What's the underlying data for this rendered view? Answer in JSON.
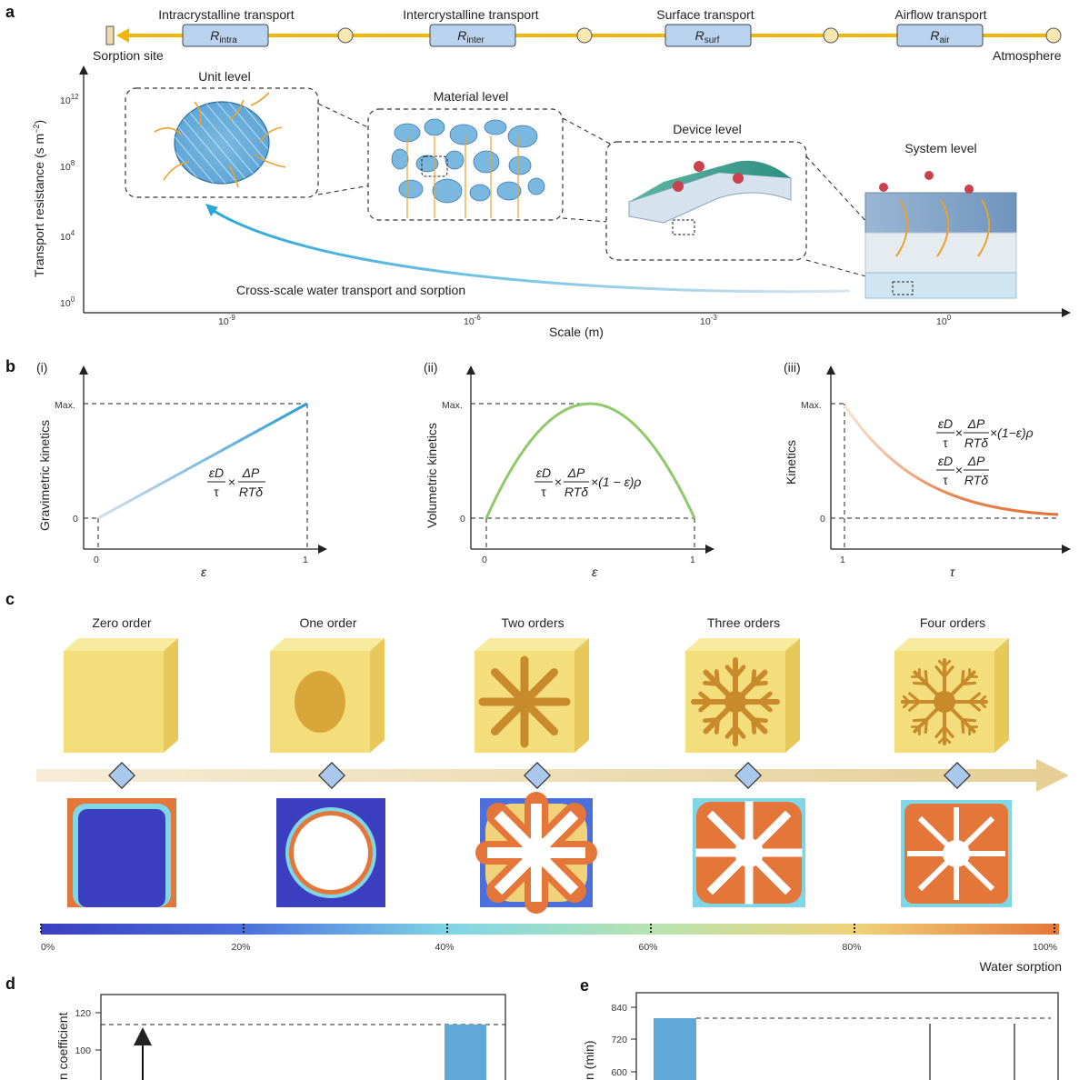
{
  "panels": {
    "a": "a",
    "b": "b",
    "c": "c",
    "d": "d",
    "e": "e"
  },
  "panel_a": {
    "chain_stages": [
      {
        "label": "Intracrystalline transport",
        "resistance": "R",
        "sub": "intra"
      },
      {
        "label": "Intercrystalline transport",
        "resistance": "R",
        "sub": "inter"
      },
      {
        "label": "Surface transport",
        "resistance": "R",
        "sub": "surf"
      },
      {
        "label": "Airflow transport",
        "resistance": "R",
        "sub": "air"
      }
    ],
    "chain_left_label": "Sorption site",
    "chain_right_label": "Atmosphere",
    "y_axis_label": "Transport resistance (s m",
    "y_axis_sup": "−2",
    "y_axis_close": ")",
    "y_ticks": [
      {
        "base": "10",
        "exp": "12"
      },
      {
        "base": "10",
        "exp": "8"
      },
      {
        "base": "10",
        "exp": "4"
      },
      {
        "base": "10",
        "exp": "0"
      }
    ],
    "x_axis_label": "Scale (m)",
    "x_ticks": [
      {
        "base": "10",
        "exp": "-9"
      },
      {
        "base": "10",
        "exp": "-6"
      },
      {
        "base": "10",
        "exp": "-3"
      },
      {
        "base": "10",
        "exp": "0"
      }
    ],
    "levels": [
      "Unit level",
      "Material level",
      "Device level",
      "System level"
    ],
    "curve_label": "Cross-scale water transport and sorption",
    "colors": {
      "chain": "#f2b600",
      "box": "#b9d3ef",
      "node": "#f7e7b0",
      "curve": "#29a3d6"
    }
  },
  "panel_b": [
    {
      "tag": "(i)",
      "ylabel": "Gravimetric kinetics",
      "xlabel": "ε",
      "max": "Max.",
      "zero_y": "0",
      "x_ticks": [
        "0",
        "1"
      ]
    },
    {
      "tag": "(ii)",
      "ylabel": "Volumetric kinetics",
      "xlabel": "ε",
      "max": "Max.",
      "zero_y": "0",
      "x_ticks": [
        "0",
        "1"
      ]
    },
    {
      "tag": "(iii)",
      "ylabel": "Kinetics",
      "xlabel": "τ",
      "max": "Max.",
      "zero_y": "0",
      "x_ticks": [
        "1"
      ]
    }
  ],
  "formula": {
    "num1": "εD",
    "den1": "τ",
    "times": "×",
    "num2": "ΔP",
    "den2": "RTδ",
    "tail_ii": "×(1 − ε)ρ",
    "tail_iii": "×(1−ε)ρ"
  },
  "panel_c": {
    "orders": [
      "Zero order",
      "One order",
      "Two orders",
      "Three orders",
      "Four orders"
    ],
    "colorbar_ticks": [
      "0%",
      "20%",
      "40%",
      "60%",
      "80%",
      "100%"
    ],
    "colorbar_label": "Water sorption"
  },
  "panel_d": {
    "ylabel": "n coefficient",
    "y_ticks": [
      "120",
      "100"
    ]
  },
  "panel_e": {
    "ylabel": "n (min)",
    "y_ticks": [
      "840",
      "720",
      "600"
    ]
  }
}
